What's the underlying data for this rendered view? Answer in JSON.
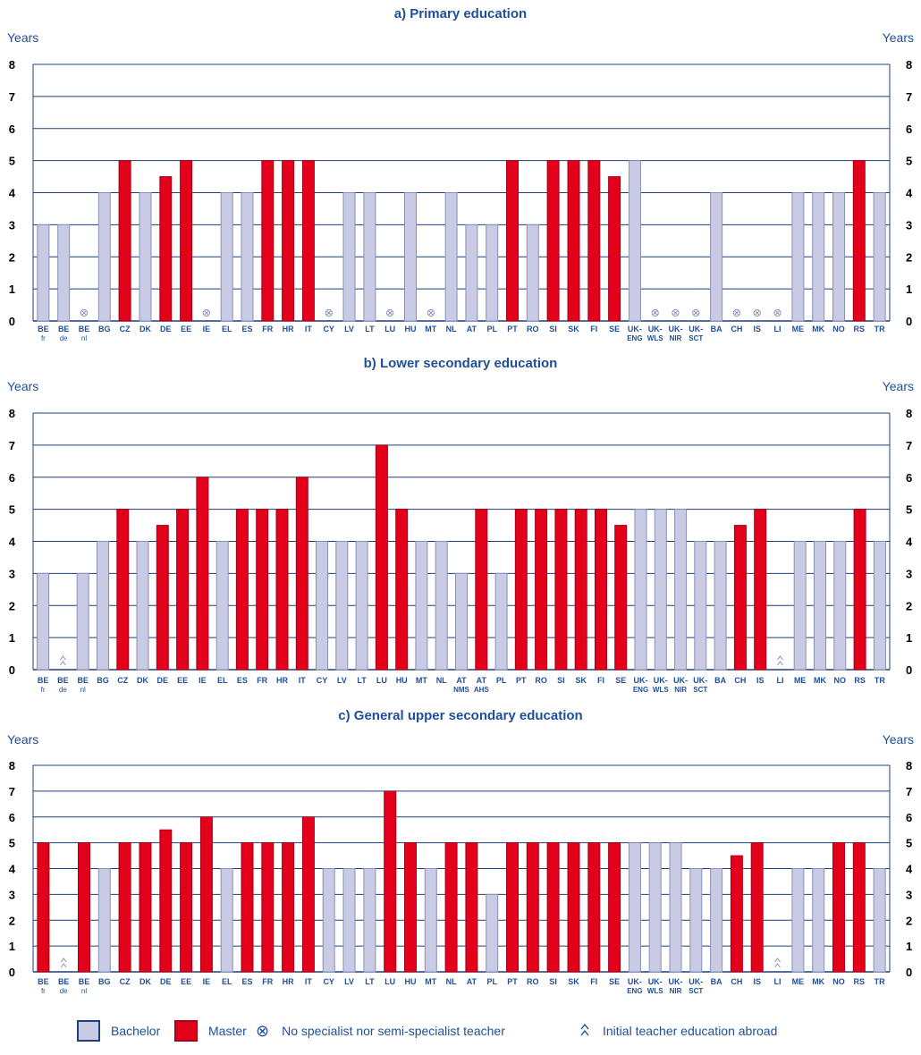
{
  "chart_data": [
    {
      "type": "bar",
      "title": "a) Primary education",
      "ylabel_left": "Years",
      "ylabel_right": "Years",
      "ylim": [
        0,
        8
      ],
      "yticks": [
        "0",
        "1",
        "2",
        "3",
        "4",
        "5",
        "6",
        "7",
        "8"
      ],
      "categories": [
        {
          "code": "BE",
          "sub": "fr",
          "value": 3,
          "kind": "bachelor"
        },
        {
          "code": "BE",
          "sub": "de",
          "value": 3,
          "kind": "bachelor"
        },
        {
          "code": "BE",
          "sub": "nl",
          "value": null,
          "kind": "none"
        },
        {
          "code": "BG",
          "sub": "",
          "value": 4,
          "kind": "bachelor"
        },
        {
          "code": "CZ",
          "sub": "",
          "value": 5,
          "kind": "master"
        },
        {
          "code": "DK",
          "sub": "",
          "value": 4,
          "kind": "bachelor"
        },
        {
          "code": "DE",
          "sub": "",
          "value": 4.5,
          "kind": "master"
        },
        {
          "code": "EE",
          "sub": "",
          "value": 5,
          "kind": "master"
        },
        {
          "code": "IE",
          "sub": "",
          "value": null,
          "kind": "none"
        },
        {
          "code": "EL",
          "sub": "",
          "value": 4,
          "kind": "bachelor"
        },
        {
          "code": "ES",
          "sub": "",
          "value": 4,
          "kind": "bachelor"
        },
        {
          "code": "FR",
          "sub": "",
          "value": 5,
          "kind": "master"
        },
        {
          "code": "HR",
          "sub": "",
          "value": 5,
          "kind": "master"
        },
        {
          "code": "IT",
          "sub": "",
          "value": 5,
          "kind": "master"
        },
        {
          "code": "CY",
          "sub": "",
          "value": null,
          "kind": "none"
        },
        {
          "code": "LV",
          "sub": "",
          "value": 4,
          "kind": "bachelor"
        },
        {
          "code": "LT",
          "sub": "",
          "value": 4,
          "kind": "bachelor"
        },
        {
          "code": "LU",
          "sub": "",
          "value": null,
          "kind": "none"
        },
        {
          "code": "HU",
          "sub": "",
          "value": 4,
          "kind": "bachelor"
        },
        {
          "code": "MT",
          "sub": "",
          "value": null,
          "kind": "none"
        },
        {
          "code": "NL",
          "sub": "",
          "value": 4,
          "kind": "bachelor"
        },
        {
          "code": "AT",
          "sub": "",
          "value": 3,
          "kind": "bachelor"
        },
        {
          "code": "PL",
          "sub": "",
          "value": 3,
          "kind": "bachelor"
        },
        {
          "code": "PT",
          "sub": "",
          "value": 5,
          "kind": "master"
        },
        {
          "code": "RO",
          "sub": "",
          "value": 3,
          "kind": "bachelor"
        },
        {
          "code": "SI",
          "sub": "",
          "value": 5,
          "kind": "master"
        },
        {
          "code": "SK",
          "sub": "",
          "value": 5,
          "kind": "master"
        },
        {
          "code": "FI",
          "sub": "",
          "value": 5,
          "kind": "master"
        },
        {
          "code": "SE",
          "sub": "",
          "value": 4.5,
          "kind": "master"
        },
        {
          "code": "UK-",
          "sub": "ENG",
          "value": 5,
          "kind": "bachelor"
        },
        {
          "code": "UK-",
          "sub": "WLS",
          "value": null,
          "kind": "none"
        },
        {
          "code": "UK-",
          "sub": "NIR",
          "value": null,
          "kind": "none"
        },
        {
          "code": "UK-",
          "sub": "SCT",
          "value": null,
          "kind": "none"
        },
        {
          "code": "BA",
          "sub": "",
          "value": 4,
          "kind": "bachelor"
        },
        {
          "code": "CH",
          "sub": "",
          "value": null,
          "kind": "none"
        },
        {
          "code": "IS",
          "sub": "",
          "value": null,
          "kind": "none"
        },
        {
          "code": "LI",
          "sub": "",
          "value": null,
          "kind": "none"
        },
        {
          "code": "ME",
          "sub": "",
          "value": 4,
          "kind": "bachelor"
        },
        {
          "code": "MK",
          "sub": "",
          "value": 4,
          "kind": "bachelor"
        },
        {
          "code": "NO",
          "sub": "",
          "value": 4,
          "kind": "bachelor"
        },
        {
          "code": "RS",
          "sub": "",
          "value": 5,
          "kind": "master"
        },
        {
          "code": "TR",
          "sub": "",
          "value": 4,
          "kind": "bachelor"
        }
      ]
    },
    {
      "type": "bar",
      "title": "b) Lower secondary education",
      "ylabel_left": "Years",
      "ylabel_right": "Years",
      "ylim": [
        0,
        8
      ],
      "yticks": [
        "0",
        "1",
        "2",
        "3",
        "4",
        "5",
        "6",
        "7",
        "8"
      ],
      "categories": [
        {
          "code": "BE",
          "sub": "fr",
          "value": 3,
          "kind": "bachelor"
        },
        {
          "code": "BE",
          "sub": "de",
          "value": null,
          "kind": "abroad"
        },
        {
          "code": "BE",
          "sub": "nl",
          "value": 3,
          "kind": "bachelor"
        },
        {
          "code": "BG",
          "sub": "",
          "value": 4,
          "kind": "bachelor"
        },
        {
          "code": "CZ",
          "sub": "",
          "value": 5,
          "kind": "master"
        },
        {
          "code": "DK",
          "sub": "",
          "value": 4,
          "kind": "bachelor"
        },
        {
          "code": "DE",
          "sub": "",
          "value": 4.5,
          "kind": "master"
        },
        {
          "code": "EE",
          "sub": "",
          "value": 5,
          "kind": "master"
        },
        {
          "code": "IE",
          "sub": "",
          "value": 6,
          "kind": "master"
        },
        {
          "code": "EL",
          "sub": "",
          "value": 4,
          "kind": "bachelor"
        },
        {
          "code": "ES",
          "sub": "",
          "value": 5,
          "kind": "master"
        },
        {
          "code": "FR",
          "sub": "",
          "value": 5,
          "kind": "master"
        },
        {
          "code": "HR",
          "sub": "",
          "value": 5,
          "kind": "master"
        },
        {
          "code": "IT",
          "sub": "",
          "value": 6,
          "kind": "master"
        },
        {
          "code": "CY",
          "sub": "",
          "value": 4,
          "kind": "bachelor"
        },
        {
          "code": "LV",
          "sub": "",
          "value": 4,
          "kind": "bachelor"
        },
        {
          "code": "LT",
          "sub": "",
          "value": 4,
          "kind": "bachelor"
        },
        {
          "code": "LU",
          "sub": "",
          "value": 7,
          "kind": "master"
        },
        {
          "code": "HU",
          "sub": "",
          "value": 5,
          "kind": "master"
        },
        {
          "code": "MT",
          "sub": "",
          "value": 4,
          "kind": "bachelor"
        },
        {
          "code": "NL",
          "sub": "",
          "value": 4,
          "kind": "bachelor"
        },
        {
          "code": "AT",
          "sub": "NMS",
          "value": 3,
          "kind": "bachelor"
        },
        {
          "code": "AT",
          "sub": "AHS",
          "value": 5,
          "kind": "master"
        },
        {
          "code": "PL",
          "sub": "",
          "value": 3,
          "kind": "bachelor"
        },
        {
          "code": "PT",
          "sub": "",
          "value": 5,
          "kind": "master"
        },
        {
          "code": "RO",
          "sub": "",
          "value": 5,
          "kind": "master"
        },
        {
          "code": "SI",
          "sub": "",
          "value": 5,
          "kind": "master"
        },
        {
          "code": "SK",
          "sub": "",
          "value": 5,
          "kind": "master"
        },
        {
          "code": "FI",
          "sub": "",
          "value": 5,
          "kind": "master"
        },
        {
          "code": "SE",
          "sub": "",
          "value": 4.5,
          "kind": "master"
        },
        {
          "code": "UK-",
          "sub": "ENG",
          "value": 5,
          "kind": "bachelor"
        },
        {
          "code": "UK-",
          "sub": "WLS",
          "value": 5,
          "kind": "bachelor"
        },
        {
          "code": "UK-",
          "sub": "NIR",
          "value": 5,
          "kind": "bachelor"
        },
        {
          "code": "UK-",
          "sub": "SCT",
          "value": 4,
          "kind": "bachelor"
        },
        {
          "code": "BA",
          "sub": "",
          "value": 4,
          "kind": "bachelor"
        },
        {
          "code": "CH",
          "sub": "",
          "value": 4.5,
          "kind": "master"
        },
        {
          "code": "IS",
          "sub": "",
          "value": 5,
          "kind": "master"
        },
        {
          "code": "LI",
          "sub": "",
          "value": null,
          "kind": "abroad"
        },
        {
          "code": "ME",
          "sub": "",
          "value": 4,
          "kind": "bachelor"
        },
        {
          "code": "MK",
          "sub": "",
          "value": 4,
          "kind": "bachelor"
        },
        {
          "code": "NO",
          "sub": "",
          "value": 4,
          "kind": "bachelor"
        },
        {
          "code": "RS",
          "sub": "",
          "value": 5,
          "kind": "master"
        },
        {
          "code": "TR",
          "sub": "",
          "value": 4,
          "kind": "bachelor"
        }
      ]
    },
    {
      "type": "bar",
      "title": "c) General upper secondary education",
      "ylabel_left": "Years",
      "ylabel_right": "Years",
      "ylim": [
        0,
        8
      ],
      "yticks": [
        "0",
        "1",
        "2",
        "3",
        "4",
        "5",
        "6",
        "7",
        "8"
      ],
      "categories": [
        {
          "code": "BE",
          "sub": "fr",
          "value": 5,
          "kind": "master"
        },
        {
          "code": "BE",
          "sub": "de",
          "value": null,
          "kind": "abroad"
        },
        {
          "code": "BE",
          "sub": "nl",
          "value": 5,
          "kind": "master"
        },
        {
          "code": "BG",
          "sub": "",
          "value": 4,
          "kind": "bachelor"
        },
        {
          "code": "CZ",
          "sub": "",
          "value": 5,
          "kind": "master"
        },
        {
          "code": "DK",
          "sub": "",
          "value": 5,
          "kind": "master"
        },
        {
          "code": "DE",
          "sub": "",
          "value": 5.5,
          "kind": "master"
        },
        {
          "code": "EE",
          "sub": "",
          "value": 5,
          "kind": "master"
        },
        {
          "code": "IE",
          "sub": "",
          "value": 6,
          "kind": "master"
        },
        {
          "code": "EL",
          "sub": "",
          "value": 4,
          "kind": "bachelor"
        },
        {
          "code": "ES",
          "sub": "",
          "value": 5,
          "kind": "master"
        },
        {
          "code": "FR",
          "sub": "",
          "value": 5,
          "kind": "master"
        },
        {
          "code": "HR",
          "sub": "",
          "value": 5,
          "kind": "master"
        },
        {
          "code": "IT",
          "sub": "",
          "value": 6,
          "kind": "master"
        },
        {
          "code": "CY",
          "sub": "",
          "value": 4,
          "kind": "bachelor"
        },
        {
          "code": "LV",
          "sub": "",
          "value": 4,
          "kind": "bachelor"
        },
        {
          "code": "LT",
          "sub": "",
          "value": 4,
          "kind": "bachelor"
        },
        {
          "code": "LU",
          "sub": "",
          "value": 7,
          "kind": "master"
        },
        {
          "code": "HU",
          "sub": "",
          "value": 5,
          "kind": "master"
        },
        {
          "code": "MT",
          "sub": "",
          "value": 4,
          "kind": "bachelor"
        },
        {
          "code": "NL",
          "sub": "",
          "value": 5,
          "kind": "master"
        },
        {
          "code": "AT",
          "sub": "",
          "value": 5,
          "kind": "master"
        },
        {
          "code": "PL",
          "sub": "",
          "value": 3,
          "kind": "bachelor"
        },
        {
          "code": "PT",
          "sub": "",
          "value": 5,
          "kind": "master"
        },
        {
          "code": "RO",
          "sub": "",
          "value": 5,
          "kind": "master"
        },
        {
          "code": "SI",
          "sub": "",
          "value": 5,
          "kind": "master"
        },
        {
          "code": "SK",
          "sub": "",
          "value": 5,
          "kind": "master"
        },
        {
          "code": "FI",
          "sub": "",
          "value": 5,
          "kind": "master"
        },
        {
          "code": "SE",
          "sub": "",
          "value": 5,
          "kind": "master"
        },
        {
          "code": "UK-",
          "sub": "ENG",
          "value": 5,
          "kind": "bachelor"
        },
        {
          "code": "UK-",
          "sub": "WLS",
          "value": 5,
          "kind": "bachelor"
        },
        {
          "code": "UK-",
          "sub": "NIR",
          "value": 5,
          "kind": "bachelor"
        },
        {
          "code": "UK-",
          "sub": "SCT",
          "value": 4,
          "kind": "bachelor"
        },
        {
          "code": "BA",
          "sub": "",
          "value": 4,
          "kind": "bachelor"
        },
        {
          "code": "CH",
          "sub": "",
          "value": 4.5,
          "kind": "master"
        },
        {
          "code": "IS",
          "sub": "",
          "value": 5,
          "kind": "master"
        },
        {
          "code": "LI",
          "sub": "",
          "value": null,
          "kind": "abroad"
        },
        {
          "code": "ME",
          "sub": "",
          "value": 4,
          "kind": "bachelor"
        },
        {
          "code": "MK",
          "sub": "",
          "value": 4,
          "kind": "bachelor"
        },
        {
          "code": "NO",
          "sub": "",
          "value": 5,
          "kind": "master"
        },
        {
          "code": "RS",
          "sub": "",
          "value": 5,
          "kind": "master"
        },
        {
          "code": "TR",
          "sub": "",
          "value": 4,
          "kind": "bachelor"
        }
      ]
    }
  ],
  "legend": {
    "bachelor_label": "Bachelor",
    "master_label": "Master",
    "none_symbol": "⊗",
    "none_label": "No specialist nor semi-specialist teacher",
    "abroad_symbol": "^^",
    "abroad_label": "Initial teacher education abroad"
  },
  "colors": {
    "bachelor_fill": "#c8cbe3",
    "bachelor_stroke": "#8a8fb8",
    "master_fill": "#e3001b",
    "master_stroke": "#a80014",
    "title_text": "#1f4e9a",
    "axis_text": "#1f4e9a",
    "gridline": "#1f3f7a",
    "symbol": "#8a8fb8"
  }
}
